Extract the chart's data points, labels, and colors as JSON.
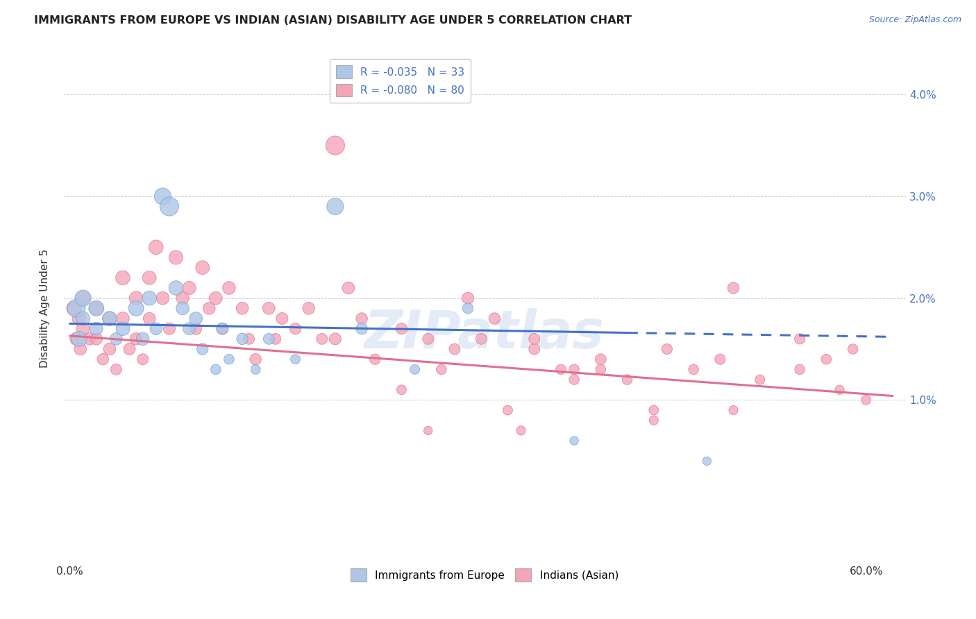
{
  "title": "IMMIGRANTS FROM EUROPE VS INDIAN (ASIAN) DISABILITY AGE UNDER 5 CORRELATION CHART",
  "source": "Source: ZipAtlas.com",
  "ylabel": "Disability Age Under 5",
  "y_ticks": [
    0.01,
    0.02,
    0.03,
    0.04
  ],
  "y_tick_labels": [
    "1.0%",
    "2.0%",
    "3.0%",
    "4.0%"
  ],
  "series_europe": {
    "color": "#aec6e8",
    "edge_color": "#6da0d0",
    "x": [
      0.005,
      0.007,
      0.01,
      0.01,
      0.02,
      0.02,
      0.03,
      0.035,
      0.04,
      0.05,
      0.055,
      0.06,
      0.065,
      0.07,
      0.075,
      0.08,
      0.085,
      0.09,
      0.095,
      0.1,
      0.11,
      0.115,
      0.12,
      0.13,
      0.14,
      0.15,
      0.17,
      0.2,
      0.22,
      0.26,
      0.3,
      0.38,
      0.48
    ],
    "y": [
      0.019,
      0.016,
      0.02,
      0.018,
      0.019,
      0.017,
      0.018,
      0.016,
      0.017,
      0.019,
      0.016,
      0.02,
      0.017,
      0.03,
      0.029,
      0.021,
      0.019,
      0.017,
      0.018,
      0.015,
      0.013,
      0.017,
      0.014,
      0.016,
      0.013,
      0.016,
      0.014,
      0.029,
      0.017,
      0.013,
      0.019,
      0.006,
      0.004
    ],
    "size": [
      350,
      250,
      280,
      200,
      250,
      180,
      220,
      160,
      200,
      250,
      180,
      220,
      160,
      300,
      380,
      220,
      180,
      160,
      180,
      140,
      110,
      140,
      110,
      140,
      100,
      130,
      100,
      300,
      140,
      100,
      120,
      80,
      80
    ]
  },
  "series_indian": {
    "color": "#f4a6b8",
    "edge_color": "#e07090",
    "x": [
      0.003,
      0.005,
      0.007,
      0.008,
      0.01,
      0.01,
      0.015,
      0.02,
      0.02,
      0.025,
      0.03,
      0.03,
      0.035,
      0.04,
      0.04,
      0.045,
      0.05,
      0.05,
      0.055,
      0.06,
      0.06,
      0.065,
      0.07,
      0.075,
      0.08,
      0.085,
      0.09,
      0.095,
      0.1,
      0.105,
      0.11,
      0.115,
      0.12,
      0.13,
      0.135,
      0.14,
      0.15,
      0.155,
      0.16,
      0.17,
      0.18,
      0.19,
      0.2,
      0.21,
      0.22,
      0.23,
      0.25,
      0.27,
      0.28,
      0.29,
      0.3,
      0.31,
      0.32,
      0.33,
      0.34,
      0.35,
      0.37,
      0.38,
      0.4,
      0.42,
      0.44,
      0.45,
      0.47,
      0.49,
      0.5,
      0.52,
      0.55,
      0.57,
      0.58,
      0.59,
      0.35,
      0.25,
      0.38,
      0.5,
      0.55,
      0.27,
      0.44,
      0.4,
      0.6,
      0.2
    ],
    "y": [
      0.019,
      0.016,
      0.018,
      0.015,
      0.02,
      0.017,
      0.016,
      0.019,
      0.016,
      0.014,
      0.018,
      0.015,
      0.013,
      0.022,
      0.018,
      0.015,
      0.02,
      0.016,
      0.014,
      0.022,
      0.018,
      0.025,
      0.02,
      0.017,
      0.024,
      0.02,
      0.021,
      0.017,
      0.023,
      0.019,
      0.02,
      0.017,
      0.021,
      0.019,
      0.016,
      0.014,
      0.019,
      0.016,
      0.018,
      0.017,
      0.019,
      0.016,
      0.016,
      0.021,
      0.018,
      0.014,
      0.017,
      0.016,
      0.013,
      0.015,
      0.02,
      0.016,
      0.018,
      0.009,
      0.007,
      0.015,
      0.013,
      0.012,
      0.014,
      0.012,
      0.009,
      0.015,
      0.013,
      0.014,
      0.021,
      0.012,
      0.016,
      0.014,
      0.011,
      0.015,
      0.016,
      0.011,
      0.013,
      0.009,
      0.013,
      0.007,
      0.008,
      0.013,
      0.01,
      0.035
    ],
    "size": [
      220,
      180,
      200,
      160,
      220,
      180,
      160,
      200,
      160,
      140,
      200,
      160,
      130,
      220,
      180,
      150,
      200,
      160,
      130,
      200,
      160,
      220,
      180,
      150,
      210,
      170,
      190,
      150,
      200,
      160,
      180,
      150,
      180,
      160,
      130,
      140,
      160,
      130,
      150,
      140,
      160,
      130,
      150,
      160,
      140,
      120,
      140,
      130,
      110,
      130,
      150,
      130,
      140,
      100,
      90,
      130,
      110,
      110,
      130,
      110,
      100,
      120,
      110,
      120,
      140,
      100,
      120,
      110,
      90,
      110,
      130,
      100,
      110,
      90,
      110,
      80,
      90,
      110,
      100,
      380
    ]
  },
  "trend_europe": {
    "color": "#4472c4",
    "x_start": 0.0,
    "x_solid_end": 0.42,
    "x_dash_end": 0.62,
    "y_start": 0.0175,
    "y_solid_end": 0.0166,
    "y_dash_end": 0.0162
  },
  "trend_indian": {
    "color": "#e07090",
    "x_start": 0.0,
    "x_end": 0.62,
    "y_start": 0.0163,
    "y_end": 0.0104
  },
  "xlim": [
    -0.005,
    0.63
  ],
  "ylim": [
    -0.006,
    0.044
  ],
  "background_color": "#ffffff",
  "grid_color": "#cccccc",
  "title_fontsize": 11.5,
  "axis_label_fontsize": 11,
  "tick_fontsize": 11,
  "watermark_text": "ZIPatlas",
  "watermark_fontsize": 55
}
